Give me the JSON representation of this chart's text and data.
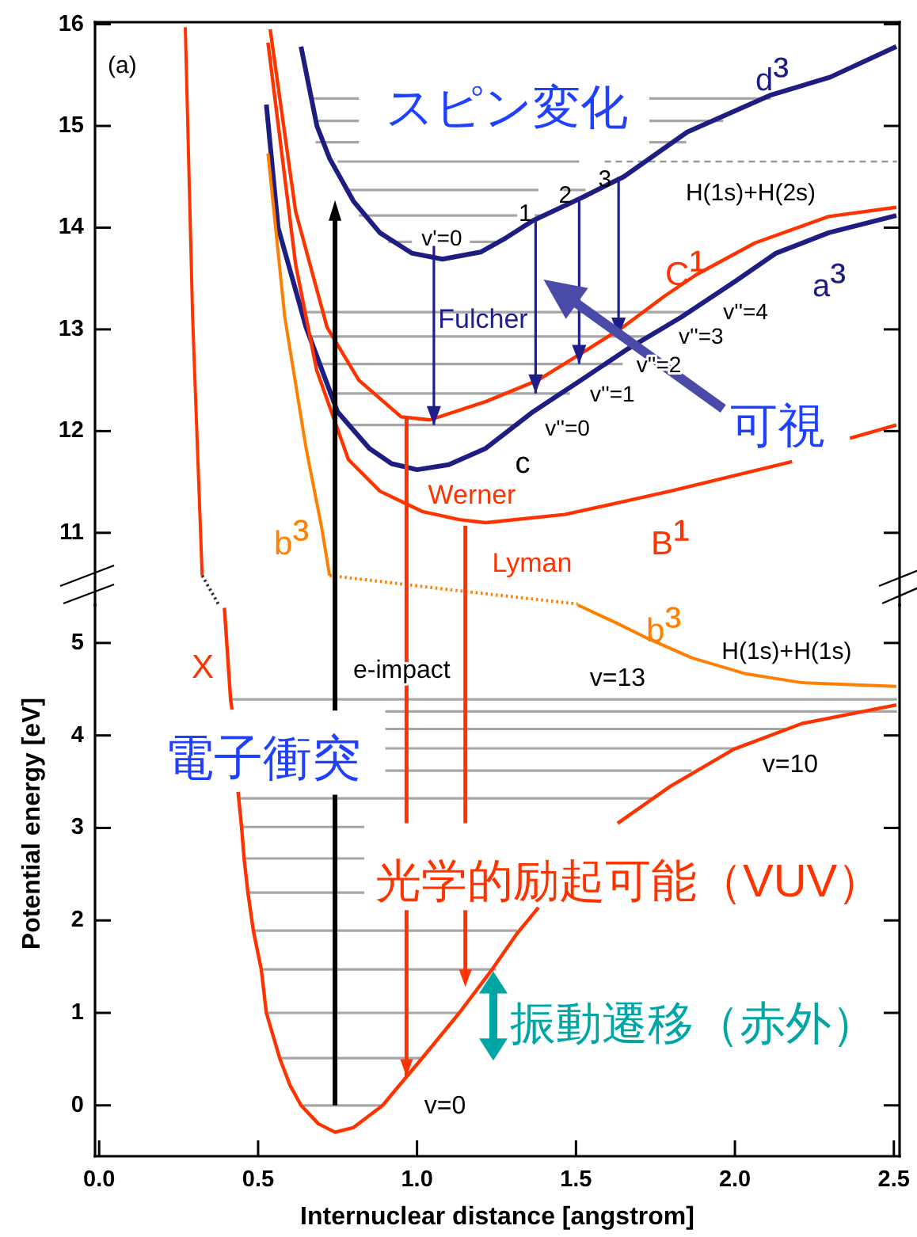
{
  "chart_data": [
    {
      "type": "line",
      "xlim": [
        -0.013,
        2.518
      ],
      "ylim": [
        10.29,
        16.02
      ],
      "yticks": [
        11,
        12,
        13,
        14,
        15,
        16
      ],
      "tick_labels": "y",
      "series": [
        {
          "color": "#a6a6a6",
          "x": [
            0.909,
            0.984,
            1.07,
            1.166,
            1.249
          ],
          "values": [
            13.86,
            13.86,
            null,
            13.86,
            13.86
          ]
        },
        {
          "color": "#a6a6a6",
          "x": [
            0.817,
            1.315,
            1.34,
            1.37,
            1.41
          ],
          "values": [
            14.12,
            14.12,
            null,
            14.12,
            14.12
          ]
        },
        {
          "color": "#a6a6a6",
          "x": [
            0.775,
            1.382,
            1.42,
            1.46,
            1.53
          ],
          "values": [
            14.37,
            14.37,
            null,
            14.37,
            14.37
          ]
        },
        {
          "color": "#a6a6a6",
          "x": [
            0.75,
            1.51
          ],
          "values": [
            14.65,
            14.65
          ]
        },
        {
          "color": "#a6a6a6",
          "x": [
            0.681,
            0.817,
            1.2,
            1.731,
            1.847
          ],
          "values": [
            14.84,
            14.84,
            null,
            14.84,
            14.84
          ]
        },
        {
          "color": "#a6a6a6",
          "x": [
            0.681,
            0.817,
            1.2,
            1.731,
            1.963
          ],
          "values": [
            15.05,
            15.05,
            null,
            15.05,
            15.05
          ]
        },
        {
          "color": "#a6a6a6",
          "x": [
            0.668,
            0.817,
            1.2,
            1.731,
            2.113
          ],
          "values": [
            15.27,
            15.27,
            null,
            15.27,
            15.27
          ]
        },
        {
          "color": "#a6a6a6",
          "x": [
            0.792,
            1.323
          ],
          "values": [
            12.06,
            12.06
          ]
        },
        {
          "color": "#a6a6a6",
          "x": [
            0.72,
            1.481
          ],
          "values": [
            12.37,
            12.37
          ]
        },
        {
          "color": "#a6a6a6",
          "x": [
            0.684,
            1.647
          ],
          "values": [
            12.66,
            12.66
          ]
        },
        {
          "color": "#a6a6a6",
          "x": [
            0.656,
            1.731
          ],
          "values": [
            12.93,
            12.93
          ]
        },
        {
          "color": "#a6a6a6",
          "x": [
            0.643,
            1.864
          ],
          "values": [
            13.17,
            13.17
          ]
        },
        {
          "color": "#999999",
          "line_style": "dashed",
          "x": [
            1.59,
            2.51
          ],
          "values": [
            14.65,
            14.65
          ]
        },
        {
          "name": "d³",
          "color": "#1e1e82",
          "x": [
            0.635,
            0.685,
            0.725,
            0.8,
            0.883,
            0.983,
            1.08,
            1.2,
            1.28,
            1.365,
            1.515,
            1.65,
            1.85,
            2.11,
            2.3,
            2.508
          ],
          "values": [
            15.78,
            15.0,
            14.68,
            14.26,
            13.95,
            13.75,
            13.69,
            13.76,
            13.9,
            14.07,
            14.29,
            14.5,
            14.94,
            15.3,
            15.48,
            15.78
          ]
        },
        {
          "name": "a³",
          "color": "#1e1e82",
          "x": [
            0.526,
            0.563,
            0.651,
            0.75,
            0.85,
            0.92,
            1.0,
            1.1,
            1.216,
            1.365,
            1.515,
            1.664,
            1.831,
            2.0,
            2.13,
            2.295,
            2.508
          ],
          "values": [
            15.21,
            14.0,
            13.02,
            12.19,
            11.83,
            11.68,
            11.62,
            11.67,
            11.83,
            12.19,
            12.5,
            12.81,
            13.12,
            13.47,
            13.75,
            13.95,
            14.12
          ]
        },
        {
          "name": "C¹",
          "color": "#ff3300",
          "x": [
            0.538,
            0.618,
            0.717,
            0.817,
            0.95,
            1.04,
            1.216,
            1.38,
            1.515,
            1.647,
            1.78,
            1.88,
            2.063,
            2.295,
            2.508
          ],
          "values": [
            15.95,
            14.16,
            13.02,
            12.5,
            12.14,
            12.11,
            12.29,
            12.5,
            12.76,
            13.02,
            13.33,
            13.54,
            13.85,
            14.11,
            14.2
          ]
        },
        {
          "name": "B¹",
          "color": "#ff3300",
          "x": [
            0.531,
            0.618,
            0.684,
            0.784,
            0.883,
            1.016,
            1.133,
            1.216,
            1.465,
            1.797,
            2.18,
            2.27,
            2.362,
            2.508
          ],
          "values": [
            15.82,
            13.64,
            12.6,
            11.72,
            11.41,
            11.21,
            11.13,
            11.1,
            11.18,
            11.41,
            11.7,
            null,
            11.93,
            12.06
          ]
        },
        {
          "name": "b³",
          "color": "#ff8000",
          "x": [
            0.531,
            0.584,
            0.651,
            0.7,
            0.725
          ],
          "values": [
            14.73,
            13.12,
            11.83,
            11.05,
            10.58
          ]
        },
        {
          "color": "#ff8000",
          "line_style": "dotted",
          "x": [
            0.725,
            1.133,
            1.506
          ],
          "values": [
            10.58,
            10.43,
            10.3
          ]
        },
        {
          "color": "#ff3300",
          "x": [
            0.271,
            0.294,
            0.324
          ],
          "values": [
            15.97,
            13.12,
            10.58
          ]
        },
        {
          "color": "#333333",
          "line_style": "dotted",
          "x": [
            0.324,
            0.375
          ],
          "values": [
            10.58,
            10.3
          ]
        }
      ],
      "annotations": [
        "(a)",
        "スピン変化",
        "Fulcher",
        "Werner",
        "Lyman",
        "可視",
        "H(1s)+H(2s)",
        {
          "text": "v'=0",
          "x": 1.053,
          "y": 12.06
        },
        {
          "text": "1",
          "x": 1.373,
          "y": 12.37
        },
        {
          "text": "2",
          "x": 1.51,
          "y": 12.66
        },
        {
          "text": "3",
          "x": 1.634,
          "y": 12.93
        },
        "v''=0",
        "v''=1",
        "v''=2",
        "v''=3",
        "v''=4",
        "c"
      ]
    },
    {
      "type": "line",
      "xlim": [
        -0.013,
        2.518
      ],
      "ylim": [
        -0.55,
        5.41
      ],
      "xticks": [
        {
          "value": 0,
          "label": "0.0"
        },
        0.5,
        {
          "value": 1,
          "label": "1.0"
        },
        1.5,
        {
          "value": 2,
          "label": "2.0"
        },
        2.5
      ],
      "yticks": [
        0,
        1,
        2,
        3,
        4,
        5
      ],
      "xlabel": "Internuclear distance [angstrom]",
      "ylabel": "Potential energy [eV]",
      "series": [
        {
          "color": "#a6a6a6",
          "x": [
            0.635,
            0.892
          ],
          "values": [
            0,
            0
          ]
        },
        {
          "color": "#a6a6a6",
          "x": [
            0.568,
            1.016
          ],
          "values": [
            0.51,
            0.51
          ]
        },
        {
          "color": "#a6a6a6",
          "x": [
            0.526,
            1.133
          ],
          "values": [
            1.0,
            1.0
          ]
        },
        {
          "color": "#a6a6a6",
          "x": [
            0.51,
            1.249
          ],
          "values": [
            1.47,
            1.47
          ]
        },
        {
          "color": "#a6a6a6",
          "x": [
            0.485,
            1.315
          ],
          "values": [
            1.89,
            1.89
          ]
        },
        {
          "color": "#a6a6a6",
          "x": [
            0.468,
            0.834
          ],
          "values": [
            2.3,
            2.3
          ]
        },
        {
          "color": "#a6a6a6",
          "x": [
            0.456,
            0.834
          ],
          "values": [
            2.67,
            2.67
          ]
        },
        {
          "color": "#a6a6a6",
          "x": [
            0.448,
            0.834
          ],
          "values": [
            3.01,
            3.01
          ]
        },
        {
          "color": "#a6a6a6",
          "x": [
            0.435,
            1.739
          ],
          "values": [
            3.32,
            3.32
          ]
        },
        {
          "color": "#a6a6a6",
          "x": [
            0.9,
            1.864
          ],
          "values": [
            3.62,
            3.62
          ]
        },
        {
          "color": "#a6a6a6",
          "x": [
            0.9,
            2.013
          ],
          "values": [
            3.86,
            3.86
          ]
        },
        {
          "color": "#a6a6a6",
          "x": [
            0.9,
            2.162
          ],
          "values": [
            4.07,
            4.07
          ]
        },
        {
          "color": "#a6a6a6",
          "x": [
            0.9,
            2.51
          ],
          "values": [
            4.26,
            4.26
          ]
        },
        {
          "color": "#a6a6a6",
          "x": [
            0.4135,
            2.51
          ],
          "values": [
            4.39,
            4.39
          ]
        },
        {
          "name": "X",
          "color": "#ff3300",
          "x": [
            0.394,
            0.4135,
            0.418,
            0.427,
            0.437,
            0.448,
            0.456,
            0.468,
            0.485,
            0.51,
            0.526,
            0.568,
            0.6,
            0.635,
            0.69,
            0.742,
            0.8,
            0.892,
            0.95,
            1.016,
            1.133,
            1.232,
            1.315,
            1.382,
            1.5,
            1.631,
            1.797,
            1.996,
            2.212,
            2.508
          ],
          "values": [
            5.38,
            4.39,
            4.28,
            null,
            3.39,
            3.01,
            2.67,
            2.3,
            1.89,
            1.47,
            1.0,
            0.51,
            0.22,
            0.0,
            -0.2,
            -0.29,
            -0.24,
            0.0,
            0.24,
            0.51,
            1.0,
            1.45,
            1.86,
            2.14,
            null,
            3.05,
            3.45,
            3.85,
            4.13,
            4.33
          ]
        },
        {
          "name": "b³",
          "color": "#ff8000",
          "x": [
            1.506,
            1.631,
            1.731,
            1.864,
            2.03,
            2.212,
            2.508
          ],
          "values": [
            5.41,
            5.21,
            5.04,
            4.84,
            4.67,
            4.57,
            4.53
          ]
        }
      ],
      "annotations": [
        "e-impact",
        {
          "text": "電子衝突",
          "x": 0.742,
          "y": 0
        },
        {
          "text": "光学的励起可能（VUV）",
          "x": 0.967,
          "y": 0.31
        },
        "振動遷移（赤外）",
        "v=13",
        "H(1s)+H(1s)",
        "v=10",
        "v=0"
      ]
    }
  ]
}
